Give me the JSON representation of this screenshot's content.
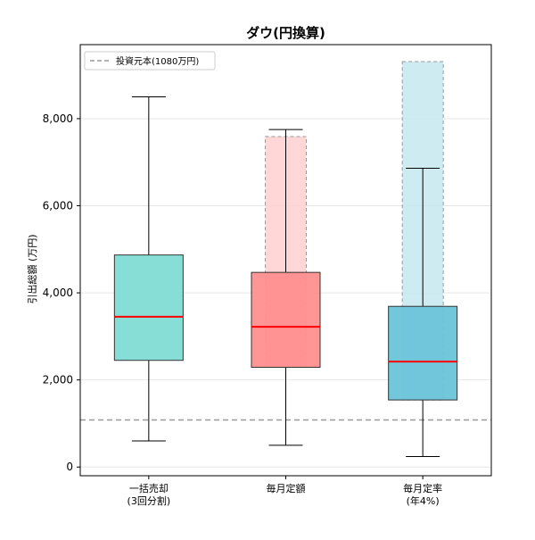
{
  "chart_data": {
    "type": "box",
    "title": "ダウ(円換算)",
    "xlabel": "",
    "ylabel": "引出総額 (万円)",
    "ylim": [
      -200,
      9700
    ],
    "yticks": [
      0,
      2000,
      4000,
      6000,
      8000
    ],
    "ytick_labels": [
      "0",
      "2,000",
      "4,000",
      "6,000",
      "8,000"
    ],
    "grid": "horizontal",
    "legend": {
      "position": "top-left",
      "entries": [
        {
          "label": "投資元本(1080万円)",
          "style": "dashed",
          "color": "#999999"
        }
      ]
    },
    "reference_line": {
      "value": 1080,
      "color": "#999999",
      "style": "dashed"
    },
    "categories": [
      {
        "lines": [
          "一括売却",
          "(3回分割)"
        ]
      },
      {
        "lines": [
          "毎月定額"
        ]
      },
      {
        "lines": [
          "毎月定率",
          "(年4%)"
        ]
      }
    ],
    "boxes": [
      {
        "whisker_low": 600,
        "q1": 2450,
        "median": 3450,
        "q3": 4870,
        "whisker_high": 8500,
        "color": "#7fdcd4"
      },
      {
        "whisker_low": 500,
        "q1": 2290,
        "median": 3220,
        "q3": 4470,
        "whisker_high": 7750,
        "color": "#ff8f8f"
      },
      {
        "whisker_low": 240,
        "q1": 1540,
        "median": 2420,
        "q3": 3690,
        "whisker_high": 6860,
        "color": "#6bc4d9"
      }
    ],
    "background_boxes": [
      {
        "category": 1,
        "low": 2290,
        "high": 7590,
        "color": "#ffd0d0"
      },
      {
        "category": 2,
        "low": 1540,
        "high": 9310,
        "color": "#c5e7f0"
      }
    ],
    "median_color": "#ff0000"
  }
}
